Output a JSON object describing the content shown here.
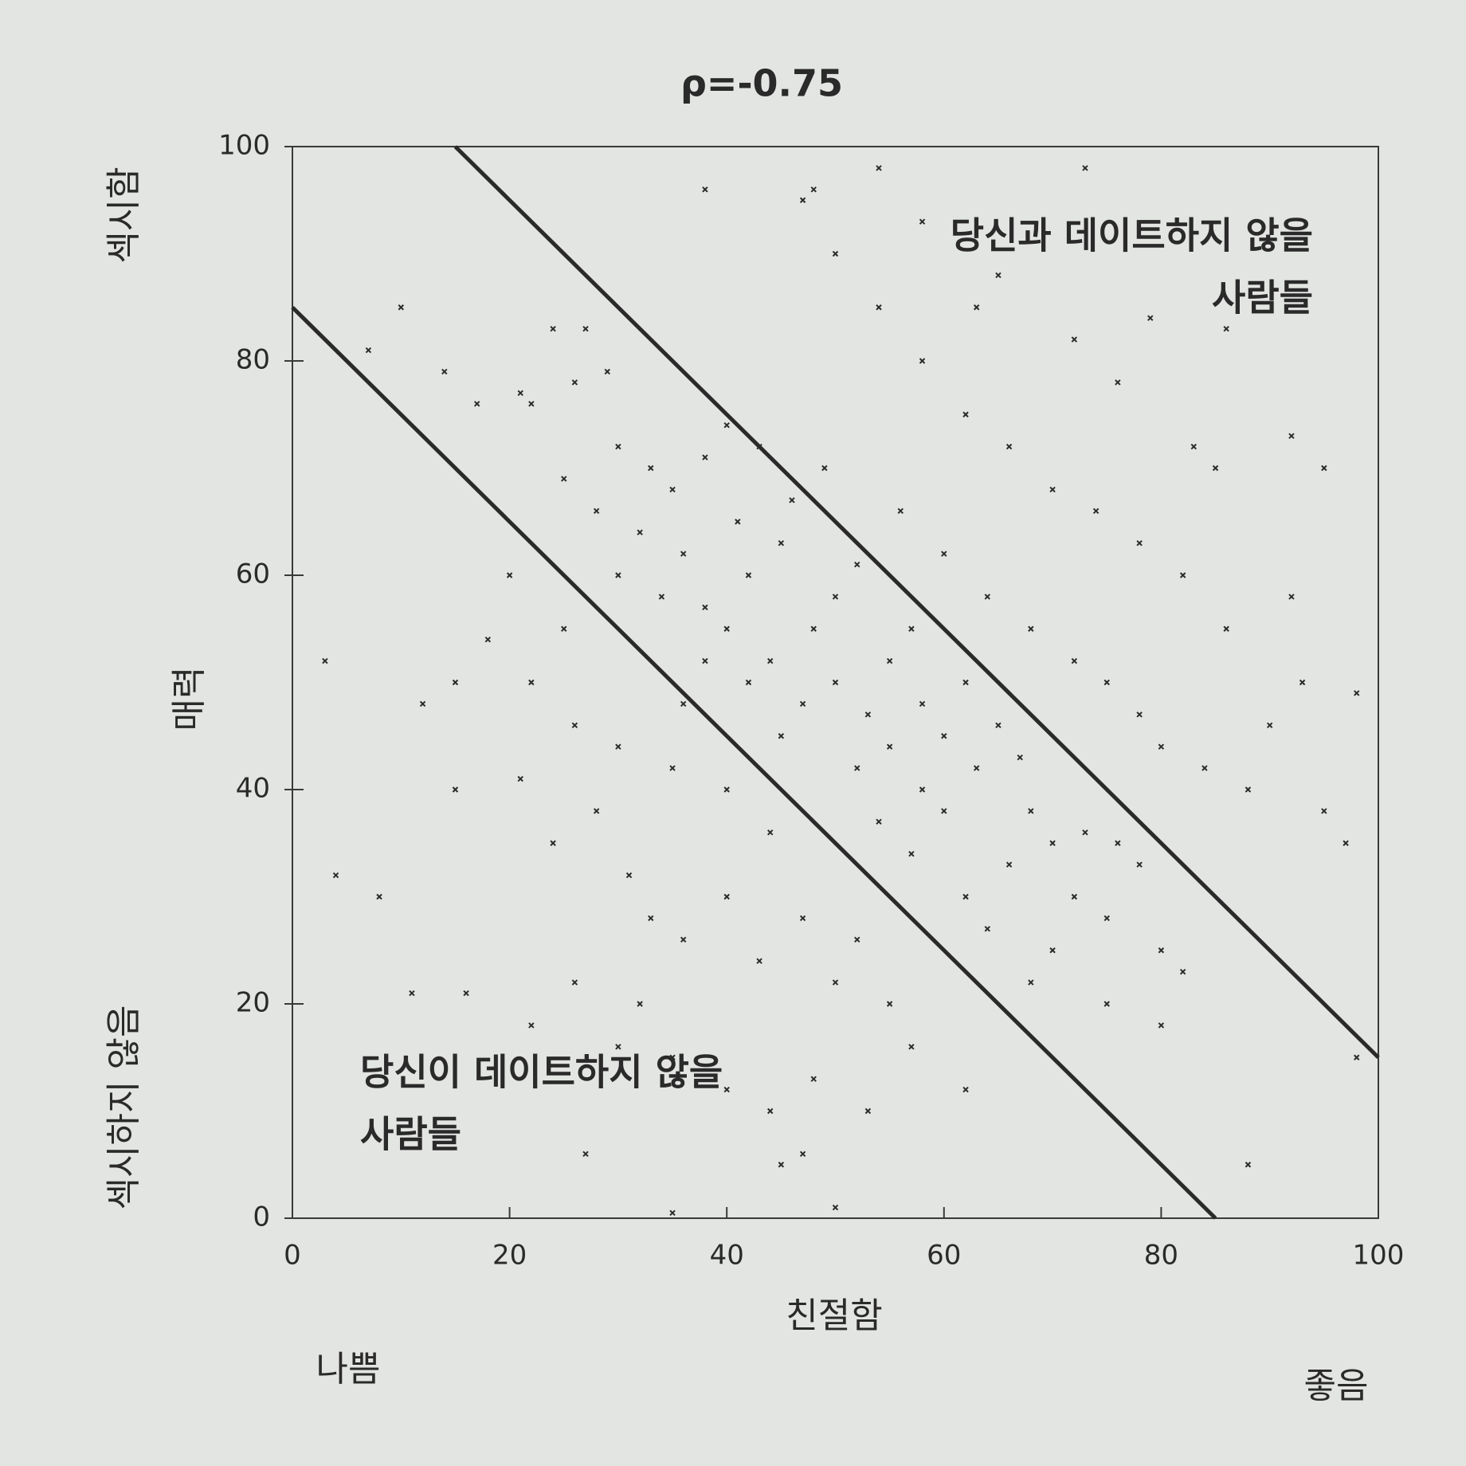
{
  "chart_data": {
    "type": "scatter",
    "title": "ρ=-0.75",
    "x_label": "친절함",
    "x_low_label": "나쁨",
    "x_high_label": "좋음",
    "y_label": "매력",
    "y_high_label": "섹시함",
    "y_low_label": "섹시하지 않음",
    "xlim": [
      0,
      100
    ],
    "ylim": [
      0,
      100
    ],
    "xticks": [
      0,
      20,
      40,
      60,
      80,
      100
    ],
    "yticks": [
      0,
      20,
      40,
      60,
      80,
      100
    ],
    "color": "#2b2b2b",
    "x": [
      10,
      7,
      14,
      17,
      21,
      24,
      27,
      22,
      26,
      29,
      25,
      30,
      33,
      28,
      32,
      35,
      38,
      40,
      36,
      30,
      34,
      38,
      42,
      45,
      40,
      44,
      48,
      50,
      52,
      47,
      50,
      53,
      55,
      57,
      58,
      60,
      62,
      55,
      52,
      58,
      60,
      63,
      65,
      67,
      68,
      70,
      66,
      62,
      72,
      75,
      73,
      76,
      78,
      70,
      68,
      80,
      82,
      64,
      57,
      54,
      45,
      42,
      38,
      36,
      41,
      46,
      49,
      43,
      56,
      60,
      64,
      68,
      72,
      75,
      78,
      80,
      84,
      88,
      90,
      93,
      86,
      82,
      78,
      74,
      70,
      66,
      62,
      58,
      54,
      50,
      47,
      54,
      73,
      92,
      95,
      97,
      20,
      18,
      15,
      12,
      3,
      4,
      8,
      11,
      16,
      22,
      26,
      30,
      32,
      35,
      40,
      44,
      48,
      53,
      57,
      62,
      45,
      50,
      35,
      88,
      80,
      75,
      27,
      47,
      21,
      24,
      28,
      31,
      33,
      36,
      40,
      43,
      47,
      50,
      55,
      52,
      44,
      40,
      35,
      30,
      26,
      22,
      25,
      15,
      85,
      83,
      76,
      72,
      65,
      58,
      38,
      48,
      63,
      79,
      86,
      98,
      98,
      92,
      95
    ],
    "y": [
      85,
      81,
      79,
      76,
      77,
      83,
      83,
      76,
      78,
      79,
      69,
      72,
      70,
      66,
      64,
      68,
      71,
      74,
      62,
      60,
      58,
      57,
      60,
      63,
      55,
      52,
      55,
      58,
      61,
      48,
      50,
      47,
      52,
      55,
      48,
      45,
      50,
      44,
      42,
      40,
      38,
      42,
      46,
      43,
      38,
      35,
      33,
      30,
      30,
      28,
      36,
      35,
      33,
      25,
      22,
      25,
      23,
      27,
      34,
      37,
      45,
      50,
      52,
      48,
      65,
      67,
      70,
      72,
      66,
      62,
      58,
      55,
      52,
      50,
      47,
      44,
      42,
      40,
      46,
      50,
      55,
      60,
      63,
      66,
      68,
      72,
      75,
      80,
      85,
      90,
      95,
      98,
      98,
      58,
      38,
      35,
      60,
      54,
      50,
      48,
      52,
      32,
      30,
      21,
      21,
      18,
      22,
      16,
      20,
      15,
      12,
      10,
      13,
      10,
      16,
      12,
      5,
      1,
      0.5,
      5,
      18,
      20,
      6,
      6,
      41,
      35,
      38,
      32,
      28,
      26,
      30,
      24,
      28,
      22,
      20,
      26,
      36,
      40,
      42,
      44,
      46,
      50,
      55,
      40,
      70,
      72,
      78,
      82,
      88,
      93,
      96,
      96,
      85,
      84,
      83,
      49,
      15,
      73,
      70
    ],
    "lines": [
      {
        "x": [
          15,
          100
        ],
        "y": [
          100,
          15
        ]
      },
      {
        "x": [
          0,
          85
        ],
        "y": [
          85,
          0
        ]
      }
    ],
    "annotations": [
      {
        "lines": [
          "당신과 데이트하지 않을",
          "사람들"
        ]
      },
      {
        "lines": [
          "당신이 데이트하지 않을",
          "사람들"
        ]
      }
    ]
  }
}
